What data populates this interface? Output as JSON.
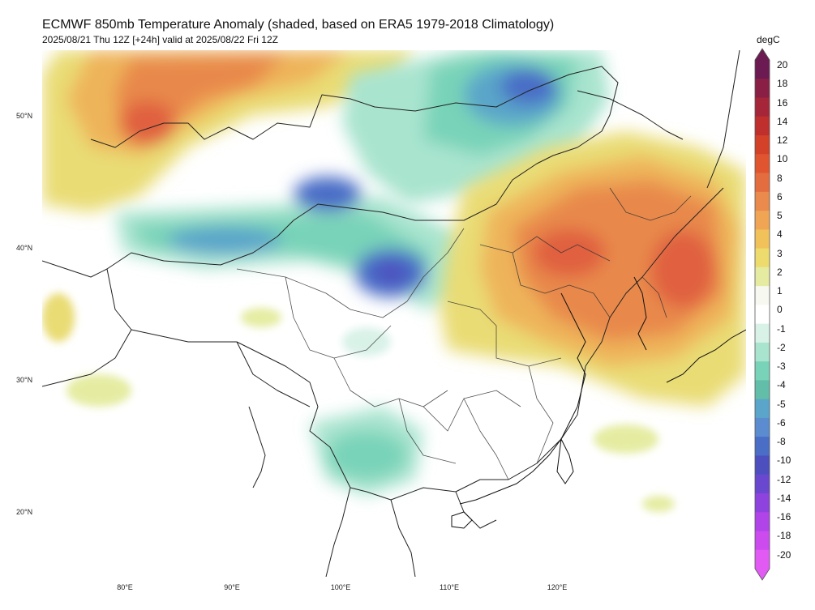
{
  "title": "ECMWF 850mb Temperature Anomaly (shaded, based on ERA5 1979-2018 Climatology)",
  "subtitle": "2025/08/21 Thu 12Z [+24h] valid at 2025/08/22 Fri 12Z",
  "lat_labels": [
    "50°N",
    "40°N",
    "30°N",
    "20°N"
  ],
  "lon_labels": [
    "80°E",
    "90°E",
    "100°E",
    "110°E",
    "120°E"
  ],
  "colorbar": {
    "unit": "degC",
    "levels": [
      "20",
      "18",
      "16",
      "14",
      "12",
      "10",
      "8",
      "6",
      "5",
      "4",
      "3",
      "2",
      "1",
      "0",
      "-1",
      "-2",
      "-3",
      "-4",
      "-5",
      "-6",
      "-8",
      "-10",
      "-12",
      "-14",
      "-16",
      "-18",
      "-20"
    ],
    "colors": [
      "#6b1a52",
      "#8a1f45",
      "#a52638",
      "#bf2f2e",
      "#d24128",
      "#e0552f",
      "#e46d40",
      "#ea8a4c",
      "#efa553",
      "#f1c15a",
      "#eedb6e",
      "#e5eca2",
      "#f7f8ef",
      "#ffffff",
      "#d9f2e8",
      "#a9e4cf",
      "#78d3b8",
      "#62bea8",
      "#5aa5c9",
      "#5a8ccf",
      "#4a6dc6",
      "#4d4fbf",
      "#6a47cf",
      "#8e43de",
      "#b044e8",
      "#cc4bef",
      "#e05af3"
    ]
  }
}
